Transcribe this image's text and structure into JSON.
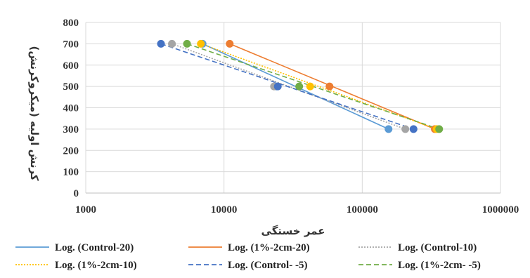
{
  "chart_data": {
    "type": "scatter",
    "title": "",
    "xlabel": "عمر خستگی",
    "ylabel": "کرنش اولیه (میکروکرنش)",
    "x_scale": "log",
    "xlim": [
      1000,
      1000000
    ],
    "x_ticks": [
      "1000",
      "10000",
      "100000",
      "1000000"
    ],
    "x_tick_values": [
      1000,
      10000,
      100000,
      1000000
    ],
    "ylim": [
      0,
      800
    ],
    "y_ticks": [
      "0",
      "100",
      "200",
      "300",
      "400",
      "500",
      "600",
      "700",
      "800"
    ],
    "y_tick_values": [
      0,
      100,
      200,
      300,
      400,
      500,
      600,
      700,
      800
    ],
    "grid": true,
    "legend_position": "bottom",
    "series": [
      {
        "name": "Control-20",
        "trend_label": "Log. (Control-20)",
        "color": "#5B9BD5",
        "dash": "solid",
        "points": [
          {
            "x": 7000,
            "y": 700
          },
          {
            "x": 24000,
            "y": 500
          },
          {
            "x": 155000,
            "y": 300
          }
        ]
      },
      {
        "name": "1%-2cm-20",
        "trend_label": "Log. (1%-2cm-20)",
        "color": "#ED7D31",
        "dash": "solid",
        "points": [
          {
            "x": 11000,
            "y": 700
          },
          {
            "x": 58000,
            "y": 500
          },
          {
            "x": 335000,
            "y": 300
          }
        ]
      },
      {
        "name": "Control-10",
        "trend_label": "Log. (Control-10)",
        "color": "#A5A5A5",
        "dash": "dotted",
        "points": [
          {
            "x": 4200,
            "y": 700
          },
          {
            "x": 23000,
            "y": 500
          },
          {
            "x": 205000,
            "y": 300
          }
        ]
      },
      {
        "name": "1%-2cm-10",
        "trend_label": "Log. (1%-2cm-10)",
        "color": "#FFC000",
        "dash": "dotted",
        "points": [
          {
            "x": 6800,
            "y": 700
          },
          {
            "x": 42000,
            "y": 500
          },
          {
            "x": 345000,
            "y": 300
          }
        ]
      },
      {
        "name": "Control- -5",
        "trend_label": "Log. (Control- -5)",
        "color": "#4472C4",
        "dash": "dashed",
        "points": [
          {
            "x": 3500,
            "y": 700
          },
          {
            "x": 24500,
            "y": 500
          },
          {
            "x": 235000,
            "y": 300
          }
        ]
      },
      {
        "name": "1%-2cm- -5",
        "trend_label": "Log. (1%-2cm- -5)",
        "color": "#70AD47",
        "dash": "dashed",
        "points": [
          {
            "x": 5400,
            "y": 700
          },
          {
            "x": 35000,
            "y": 500
          },
          {
            "x": 360000,
            "y": 300
          }
        ]
      }
    ]
  }
}
